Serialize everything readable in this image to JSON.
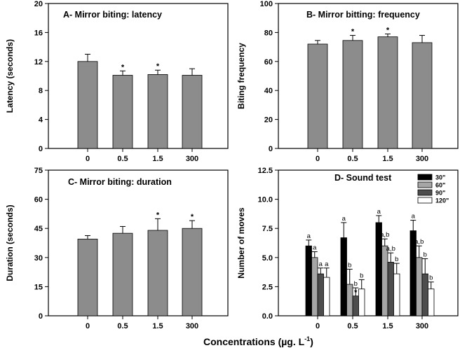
{
  "x_axis_label": "Concentrations (µg. L",
  "x_axis_label_sup": "-1",
  "x_axis_label_end": ")",
  "chart_data": [
    {
      "type": "bar",
      "title": "A- Mirror biting: latency",
      "ylabel": "Latency (seconds)",
      "categories": [
        "0",
        "0.5",
        "1.5",
        "300"
      ],
      "values": [
        12.0,
        10.1,
        10.2,
        10.1
      ],
      "errors": [
        1.0,
        0.6,
        0.6,
        0.9
      ],
      "annotations": [
        "",
        "*",
        "*",
        ""
      ],
      "ylim": [
        0,
        20
      ],
      "yticks": [
        "0",
        "4",
        "8",
        "12",
        "16",
        "20"
      ],
      "bar_color": "#8c8c8c"
    },
    {
      "type": "bar",
      "title": "B- Mirror bitting: frequency",
      "ylabel": "Biting frequency",
      "categories": [
        "0",
        "0.5",
        "1.5",
        "300"
      ],
      "values": [
        72,
        74.5,
        77,
        73
      ],
      "errors": [
        2.5,
        3.5,
        2.0,
        5.0
      ],
      "annotations": [
        "",
        "*",
        "*",
        ""
      ],
      "ylim": [
        0,
        100
      ],
      "yticks": [
        "0",
        "20",
        "40",
        "60",
        "80",
        "100"
      ],
      "bar_color": "#8c8c8c"
    },
    {
      "type": "bar",
      "title": "C- Mirror biting: duration",
      "ylabel": "Duration (seconds)",
      "categories": [
        "0",
        "0.5",
        "1.5",
        "300"
      ],
      "values": [
        39.5,
        42.5,
        44,
        45
      ],
      "errors": [
        1.8,
        3.5,
        6.0,
        4.0
      ],
      "annotations": [
        "",
        "",
        "*",
        "*"
      ],
      "ylim": [
        0,
        75
      ],
      "yticks": [
        "0",
        "15",
        "30",
        "45",
        "60",
        "75"
      ],
      "bar_color": "#8c8c8c"
    },
    {
      "type": "bar",
      "title": "D- Sound test",
      "ylabel": "Number of moves",
      "categories": [
        "0",
        "0.5",
        "1.5",
        "300"
      ],
      "ylim": [
        0,
        12.5
      ],
      "yticks": [
        "0.0",
        "2.5",
        "5.0",
        "7.5",
        "10.0",
        "12.5"
      ],
      "legend_position": "top-right",
      "series": [
        {
          "name": "30\"",
          "color": "#000000",
          "values": [
            6.0,
            6.7,
            8.0,
            7.3
          ],
          "errors": [
            0.5,
            1.3,
            0.6,
            0.9
          ],
          "labels": [
            "a",
            "a",
            "a",
            "a"
          ]
        },
        {
          "name": "60\"",
          "color": "#a6a6a6",
          "values": [
            5.0,
            2.7,
            6.0,
            5.0
          ],
          "errors": [
            0.5,
            1.3,
            0.6,
            1.0
          ],
          "labels": [
            "a",
            "b",
            "a,b",
            "a,b"
          ]
        },
        {
          "name": "90\"",
          "color": "#4d4d4d",
          "values": [
            3.6,
            1.7,
            4.6,
            3.6
          ],
          "errors": [
            0.5,
            0.7,
            0.8,
            1.3
          ],
          "labels": [
            "a",
            "b",
            "a,b",
            "b"
          ]
        },
        {
          "name": "120\"",
          "color": "#ffffff",
          "values": [
            3.3,
            2.3,
            3.6,
            2.3
          ],
          "errors": [
            0.8,
            0.8,
            0.9,
            0.6
          ],
          "labels": [
            "a",
            "b",
            "b",
            "b"
          ]
        }
      ],
      "extra_annotations": [
        {
          "category": "0.5",
          "series": "90\"",
          "text": "*"
        }
      ]
    }
  ]
}
